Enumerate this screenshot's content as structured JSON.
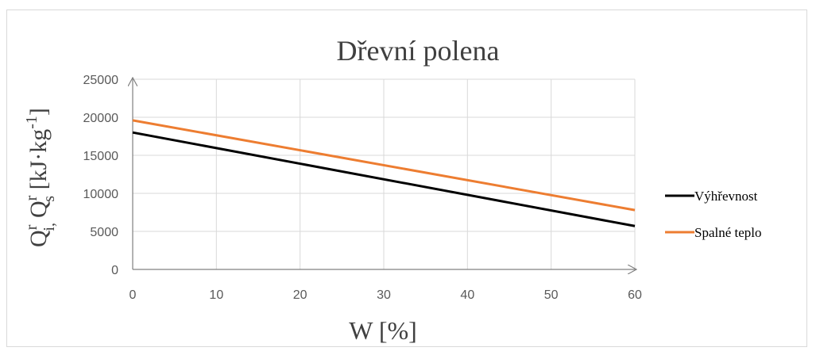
{
  "chart_data": {
    "type": "line",
    "title": "Dřevní polena",
    "xlabel": "W [%]",
    "ylabel": {
      "main": "Q",
      "sup1": "r",
      "sub1": "i",
      "sep": ",",
      "main2": "Q",
      "sup2": "r",
      "sub2": "s",
      "unit": " [kJ·kg",
      "unit_exp": "-1",
      "unit_close": "]"
    },
    "xlim": [
      0,
      60
    ],
    "ylim": [
      0,
      25000
    ],
    "x_ticks": [
      "0",
      "10",
      "20",
      "30",
      "40",
      "50",
      "60"
    ],
    "y_ticks": [
      "0",
      "5000",
      "10000",
      "15000",
      "20000",
      "25000"
    ],
    "grid": true,
    "legend_position": "right",
    "series": [
      {
        "name": "Výhřevnost",
        "color": "#000000",
        "x": [
          0,
          60
        ],
        "y": [
          18000,
          5700
        ]
      },
      {
        "name": "Spalné teplo",
        "color": "#ed7d31",
        "x": [
          0,
          60
        ],
        "y": [
          19600,
          7800
        ]
      }
    ]
  }
}
